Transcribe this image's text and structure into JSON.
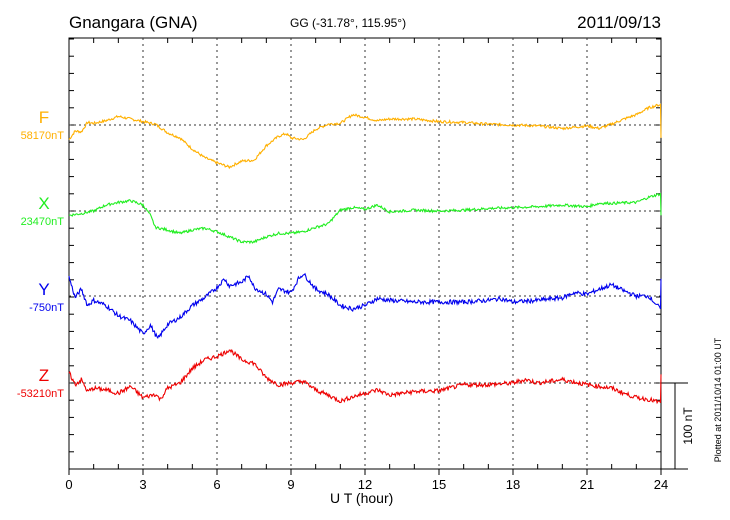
{
  "header": {
    "title": "Gnangara (GNA)",
    "coords": "GG (-31.78°, 115.95°)",
    "date": "2011/09/13"
  },
  "footer": {
    "plotted": "Plotted at 2011/10/14 01:00 UT"
  },
  "chart_data": {
    "type": "line",
    "title": "Gnangara (GNA)",
    "xlabel": "U T (hour)",
    "xlim": [
      0,
      24
    ],
    "xticks": [
      "0",
      "3",
      "6",
      "9",
      "12",
      "15",
      "18",
      "21",
      "24"
    ],
    "y_units": "nT offset from baseline",
    "scale_bar": {
      "label": "100 nT",
      "value": 100
    },
    "grid": true,
    "series": [
      {
        "name": "F",
        "baseline_label": "58170nT",
        "color": "#ffb000",
        "points": [
          [
            0,
            -17
          ],
          [
            0.25,
            -7
          ],
          [
            0.5,
            -8
          ],
          [
            0.75,
            3
          ],
          [
            1,
            2
          ],
          [
            1.5,
            5
          ],
          [
            2,
            10
          ],
          [
            2.5,
            7
          ],
          [
            3,
            4
          ],
          [
            3.5,
            1
          ],
          [
            4,
            -9
          ],
          [
            4.5,
            -15
          ],
          [
            5,
            -28
          ],
          [
            5.5,
            -38
          ],
          [
            6,
            -44
          ],
          [
            6.5,
            -49
          ],
          [
            7,
            -42
          ],
          [
            7.5,
            -41
          ],
          [
            8,
            -24
          ],
          [
            8.5,
            -13
          ],
          [
            8.8,
            -10
          ],
          [
            9,
            -15
          ],
          [
            9.5,
            -17
          ],
          [
            10,
            -5
          ],
          [
            10.5,
            1
          ],
          [
            11,
            2
          ],
          [
            11.5,
            12
          ],
          [
            12,
            9
          ],
          [
            12.5,
            5
          ],
          [
            13,
            7
          ],
          [
            14,
            7
          ],
          [
            15,
            4
          ],
          [
            16,
            3
          ],
          [
            17,
            1
          ],
          [
            18,
            0
          ],
          [
            19,
            -1
          ],
          [
            20,
            -4
          ],
          [
            21,
            -1
          ],
          [
            21.5,
            -4
          ],
          [
            22,
            1
          ],
          [
            22.5,
            7
          ],
          [
            23,
            12
          ],
          [
            23.5,
            20
          ],
          [
            23.98,
            24
          ],
          [
            24,
            -15
          ]
        ]
      },
      {
        "name": "X",
        "baseline_label": "23470nT",
        "color": "#22ee22",
        "points": [
          [
            0,
            -5
          ],
          [
            0.5,
            -3
          ],
          [
            1,
            0
          ],
          [
            1.5,
            7
          ],
          [
            2,
            10
          ],
          [
            2.5,
            12
          ],
          [
            3,
            7
          ],
          [
            3.3,
            -5
          ],
          [
            3.5,
            -19
          ],
          [
            4,
            -22
          ],
          [
            4.5,
            -26
          ],
          [
            5,
            -22
          ],
          [
            5.5,
            -20
          ],
          [
            6,
            -24
          ],
          [
            6.5,
            -30
          ],
          [
            7,
            -36
          ],
          [
            7.5,
            -36
          ],
          [
            8,
            -30
          ],
          [
            8.5,
            -26
          ],
          [
            9,
            -26
          ],
          [
            9.5,
            -24
          ],
          [
            10,
            -19
          ],
          [
            10.5,
            -15
          ],
          [
            11,
            1
          ],
          [
            11.5,
            4
          ],
          [
            12,
            2
          ],
          [
            12.5,
            7
          ],
          [
            13,
            -1
          ],
          [
            14,
            1
          ],
          [
            15,
            0
          ],
          [
            16,
            1
          ],
          [
            17,
            3
          ],
          [
            18,
            4
          ],
          [
            19,
            5
          ],
          [
            20,
            7
          ],
          [
            21,
            5
          ],
          [
            21.5,
            9
          ],
          [
            22,
            9
          ],
          [
            23,
            10
          ],
          [
            23.5,
            16
          ],
          [
            23.98,
            20
          ],
          [
            24,
            -5
          ]
        ]
      },
      {
        "name": "Y",
        "baseline_label": "-750nT",
        "color": "#0000ee",
        "points": [
          [
            0,
            22
          ],
          [
            0.25,
            -2
          ],
          [
            0.5,
            8
          ],
          [
            0.75,
            -11
          ],
          [
            1,
            -5
          ],
          [
            1.5,
            -11
          ],
          [
            2,
            -23
          ],
          [
            2.5,
            -29
          ],
          [
            3,
            -44
          ],
          [
            3.3,
            -34
          ],
          [
            3.6,
            -50
          ],
          [
            4,
            -33
          ],
          [
            4.5,
            -25
          ],
          [
            5,
            -11
          ],
          [
            5.5,
            -2
          ],
          [
            6,
            10
          ],
          [
            6.3,
            20
          ],
          [
            6.5,
            12
          ],
          [
            7,
            16
          ],
          [
            7.3,
            24
          ],
          [
            7.5,
            10
          ],
          [
            8,
            2
          ],
          [
            8.25,
            -7
          ],
          [
            8.5,
            8
          ],
          [
            9,
            4
          ],
          [
            9.3,
            20
          ],
          [
            9.5,
            26
          ],
          [
            10,
            8
          ],
          [
            10.5,
            2
          ],
          [
            11,
            -11
          ],
          [
            11.5,
            -15
          ],
          [
            12,
            -11
          ],
          [
            12.5,
            -3
          ],
          [
            13,
            -5
          ],
          [
            14,
            -7
          ],
          [
            15,
            -7
          ],
          [
            16,
            -7
          ],
          [
            17,
            -5
          ],
          [
            17.5,
            -3
          ],
          [
            18,
            -7
          ],
          [
            19,
            -5
          ],
          [
            20,
            -2
          ],
          [
            20.5,
            4
          ],
          [
            21,
            2
          ],
          [
            21.5,
            8
          ],
          [
            22,
            13
          ],
          [
            22.5,
            6
          ],
          [
            23,
            0
          ],
          [
            23.5,
            0
          ],
          [
            23.98,
            -15
          ],
          [
            24,
            20
          ]
        ]
      },
      {
        "name": "Z",
        "baseline_label": "-53210nT",
        "color": "#ee0000",
        "points": [
          [
            0,
            12
          ],
          [
            0.25,
            -2
          ],
          [
            0.5,
            4
          ],
          [
            0.75,
            -10
          ],
          [
            1,
            -6
          ],
          [
            1.5,
            -8
          ],
          [
            2,
            -12
          ],
          [
            2.5,
            -4
          ],
          [
            3,
            -17
          ],
          [
            3.5,
            -13
          ],
          [
            3.7,
            -19
          ],
          [
            4,
            -6
          ],
          [
            4.5,
            0
          ],
          [
            5,
            17
          ],
          [
            5.5,
            27
          ],
          [
            6,
            31
          ],
          [
            6.3,
            35
          ],
          [
            6.5,
            39
          ],
          [
            7,
            27
          ],
          [
            7.5,
            23
          ],
          [
            8,
            6
          ],
          [
            8.5,
            -2
          ],
          [
            9,
            0
          ],
          [
            9.5,
            2
          ],
          [
            10,
            -8
          ],
          [
            10.5,
            -14
          ],
          [
            11,
            -21
          ],
          [
            11.5,
            -16
          ],
          [
            12,
            -12
          ],
          [
            12.5,
            -8
          ],
          [
            13,
            -14
          ],
          [
            14,
            -10
          ],
          [
            15,
            -9
          ],
          [
            16,
            -2
          ],
          [
            17,
            -2
          ],
          [
            18,
            0
          ],
          [
            18.5,
            4
          ],
          [
            19,
            0
          ],
          [
            20,
            4
          ],
          [
            21,
            -2
          ],
          [
            22,
            -6
          ],
          [
            22.5,
            -12
          ],
          [
            23,
            -17
          ],
          [
            23.5,
            -19
          ],
          [
            23.98,
            -23
          ],
          [
            24,
            10
          ]
        ]
      }
    ]
  }
}
